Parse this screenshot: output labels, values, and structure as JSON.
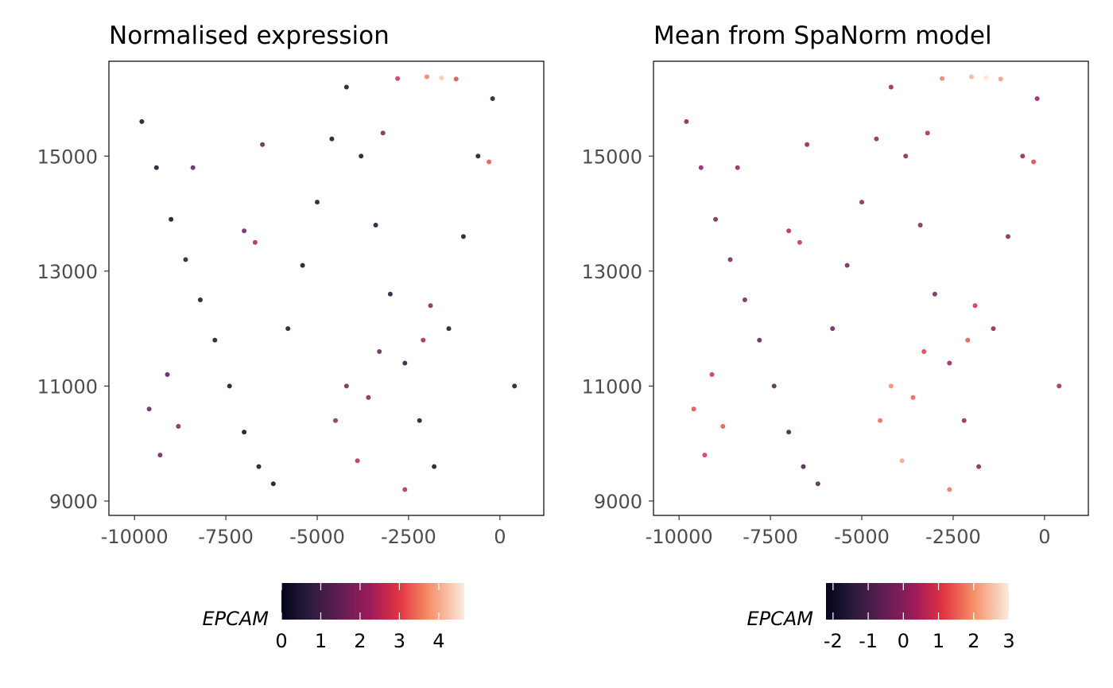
{
  "chart_data": [
    {
      "type": "scatter",
      "title": "Normalised expression",
      "xlabel": "",
      "ylabel": "",
      "xlim": [
        -10700,
        1200
      ],
      "ylim": [
        8750,
        16650
      ],
      "x_ticks": [
        -10000,
        -7500,
        -5000,
        -2500,
        0
      ],
      "x_tick_labels": [
        "-10000",
        "-7500",
        "-5000",
        "-2500",
        "0"
      ],
      "y_ticks": [
        9000,
        11000,
        13000,
        15000
      ],
      "y_tick_labels": [
        "9000",
        "11000",
        "13000",
        "15000"
      ],
      "colorbar": {
        "label": "EPCAM",
        "min": 0,
        "max": 4.65,
        "ticks": [
          0,
          1,
          2,
          3,
          4
        ],
        "tick_labels": [
          "0",
          "1",
          "2",
          "3",
          "4"
        ],
        "palette": "rocket"
      },
      "points": [
        [
          -9800,
          15600,
          0.2
        ],
        [
          -9400,
          14800,
          0.3
        ],
        [
          -9000,
          13900,
          0.1
        ],
        [
          -8600,
          13200,
          0.4
        ],
        [
          -8200,
          12500,
          0.2
        ],
        [
          -7800,
          11800,
          0.3
        ],
        [
          -7400,
          11000,
          0.2
        ],
        [
          -7000,
          10200,
          0.1
        ],
        [
          -6600,
          9600,
          0.2
        ],
        [
          -6200,
          9300,
          0.1
        ],
        [
          -5800,
          12000,
          0.3
        ],
        [
          -5400,
          13100,
          0.2
        ],
        [
          -5000,
          14200,
          0.4
        ],
        [
          -4600,
          15300,
          0.2
        ],
        [
          -4200,
          16200,
          0.3
        ],
        [
          -3800,
          15000,
          0.2
        ],
        [
          -3400,
          13800,
          0.3
        ],
        [
          -3000,
          12600,
          0.4
        ],
        [
          -2600,
          11400,
          0.6
        ],
        [
          -2200,
          10400,
          0.3
        ],
        [
          -1800,
          9600,
          0.2
        ],
        [
          -1400,
          12000,
          0.3
        ],
        [
          -1000,
          13600,
          0.2
        ],
        [
          -600,
          15000,
          0.3
        ],
        [
          -200,
          16000,
          0.4
        ],
        [
          400,
          11000,
          0.3
        ],
        [
          -9600,
          10600,
          1.4
        ],
        [
          -9300,
          9800,
          1.6
        ],
        [
          -9100,
          11200,
          1.2
        ],
        [
          -8800,
          10300,
          1.8
        ],
        [
          -4500,
          10400,
          2.1
        ],
        [
          -4200,
          11000,
          1.7
        ],
        [
          -3900,
          9700,
          2.6
        ],
        [
          -3600,
          10800,
          1.9
        ],
        [
          -3300,
          11600,
          1.5
        ],
        [
          -2100,
          11800,
          2.3
        ],
        [
          -1900,
          12400,
          1.9
        ],
        [
          -7000,
          13700,
          1.6
        ],
        [
          -6700,
          13500,
          2.4
        ],
        [
          -8400,
          14800,
          1.3
        ],
        [
          -2800,
          16350,
          2.8
        ],
        [
          -2000,
          16380,
          3.6
        ],
        [
          -1600,
          16360,
          4.3
        ],
        [
          -1200,
          16340,
          3.1
        ],
        [
          -2600,
          9200,
          2.5
        ],
        [
          -300,
          14900,
          3.2
        ],
        [
          -3200,
          15400,
          1.8
        ],
        [
          -6500,
          15200,
          1.4
        ]
      ]
    },
    {
      "type": "scatter",
      "title": "Mean from SpaNorm model",
      "xlabel": "",
      "ylabel": "",
      "xlim": [
        -10700,
        1200
      ],
      "ylim": [
        8750,
        16650
      ],
      "x_ticks": [
        -10000,
        -7500,
        -5000,
        -2500,
        0
      ],
      "x_tick_labels": [
        "-10000",
        "-7500",
        "-5000",
        "-2500",
        "0"
      ],
      "y_ticks": [
        9000,
        11000,
        13000,
        15000
      ],
      "y_tick_labels": [
        "9000",
        "11000",
        "13000",
        "15000"
      ],
      "colorbar": {
        "label": "EPCAM",
        "min": -2.2,
        "max": 3.0,
        "ticks": [
          -2,
          -1,
          0,
          1,
          2,
          3
        ],
        "tick_labels": [
          "-2",
          "-1",
          "0",
          "1",
          "2",
          "3"
        ],
        "palette": "rocket"
      },
      "points": [
        [
          -9800,
          15600,
          -0.1
        ],
        [
          -9400,
          14800,
          0.0
        ],
        [
          -9000,
          13900,
          -0.2
        ],
        [
          -8600,
          13200,
          -0.1
        ],
        [
          -8200,
          12500,
          -0.3
        ],
        [
          -7800,
          11800,
          -0.7
        ],
        [
          -7400,
          11000,
          -0.9
        ],
        [
          -7000,
          10200,
          -1.3
        ],
        [
          -6600,
          9600,
          -1.2
        ],
        [
          -6200,
          9300,
          -0.9
        ],
        [
          -5800,
          12000,
          -0.6
        ],
        [
          -5400,
          13100,
          -0.3
        ],
        [
          -5000,
          14200,
          0.0
        ],
        [
          -4600,
          15300,
          0.1
        ],
        [
          -4200,
          16200,
          0.2
        ],
        [
          -3800,
          15000,
          0.0
        ],
        [
          -3400,
          13800,
          -0.1
        ],
        [
          -3000,
          12600,
          -0.3
        ],
        [
          -2600,
          11400,
          0.3
        ],
        [
          -2200,
          10400,
          0.2
        ],
        [
          -1800,
          9600,
          0.0
        ],
        [
          -1400,
          12000,
          0.1
        ],
        [
          -1000,
          13600,
          0.0
        ],
        [
          -600,
          15000,
          0.1
        ],
        [
          -200,
          16000,
          0.2
        ],
        [
          400,
          11000,
          0.4
        ],
        [
          -9600,
          10600,
          1.3
        ],
        [
          -9300,
          9800,
          1.0
        ],
        [
          -9100,
          11200,
          0.9
        ],
        [
          -8800,
          10300,
          1.4
        ],
        [
          -4500,
          10400,
          1.6
        ],
        [
          -4200,
          11000,
          1.9
        ],
        [
          -3900,
          9700,
          2.2
        ],
        [
          -3600,
          10800,
          1.5
        ],
        [
          -3300,
          11600,
          1.1
        ],
        [
          -2100,
          11800,
          1.4
        ],
        [
          -1900,
          12400,
          0.9
        ],
        [
          -7000,
          13700,
          0.6
        ],
        [
          -6700,
          13500,
          0.8
        ],
        [
          -8400,
          14800,
          0.2
        ],
        [
          -2800,
          16350,
          1.8
        ],
        [
          -2000,
          16380,
          2.4
        ],
        [
          -1600,
          16360,
          2.9
        ],
        [
          -1200,
          16340,
          2.1
        ],
        [
          -2600,
          9200,
          1.7
        ],
        [
          -300,
          14900,
          1.2
        ],
        [
          -3200,
          15400,
          0.5
        ],
        [
          -6500,
          15200,
          0.1
        ]
      ]
    }
  ]
}
